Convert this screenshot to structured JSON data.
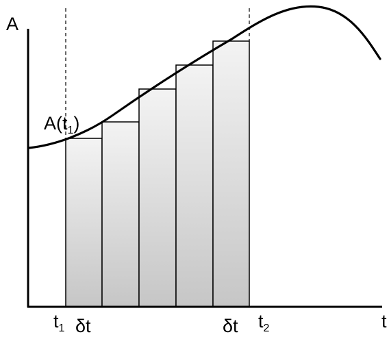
{
  "axes": {
    "y_label": "A",
    "x_label": "t"
  },
  "labels": {
    "curve_point": "A(t",
    "curve_point_sub": "1",
    "curve_point_close": ")",
    "t1": "t",
    "t1_sub": "1",
    "t2": "t",
    "t2_sub": "2",
    "delta_left": "δt",
    "delta_right": "δt"
  },
  "rectangles": {
    "count": 5
  },
  "colors": {
    "curve": "#000000",
    "axes": "#000000",
    "rect_fill_light": "#f2f2f2",
    "rect_fill_dark": "#c8c8c8",
    "rect_stroke": "#000000"
  }
}
